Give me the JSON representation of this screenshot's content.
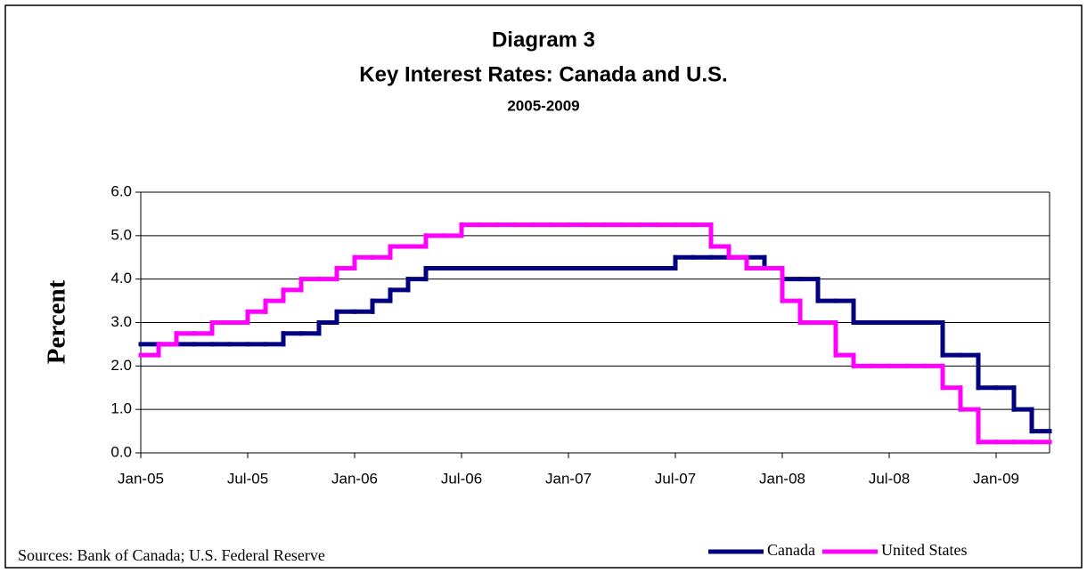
{
  "chart_data": {
    "type": "step-line",
    "title": "Diagram 3",
    "subtitle": "Key Interest Rates: Canada and U.S.",
    "period": "2005-2009",
    "ylabel": "Percent",
    "source": "Sources: Bank of Canada; U.S. Federal Reserve",
    "x": [
      "2005-01",
      "2005-02",
      "2005-03",
      "2005-04",
      "2005-05",
      "2005-06",
      "2005-07",
      "2005-08",
      "2005-09",
      "2005-10",
      "2005-11",
      "2005-12",
      "2006-01",
      "2006-02",
      "2006-03",
      "2006-04",
      "2006-05",
      "2006-06",
      "2006-07",
      "2006-08",
      "2006-09",
      "2006-10",
      "2006-11",
      "2006-12",
      "2007-01",
      "2007-02",
      "2007-03",
      "2007-04",
      "2007-05",
      "2007-06",
      "2007-07",
      "2007-08",
      "2007-09",
      "2007-10",
      "2007-11",
      "2007-12",
      "2008-01",
      "2008-02",
      "2008-03",
      "2008-04",
      "2008-05",
      "2008-06",
      "2008-07",
      "2008-08",
      "2008-09",
      "2008-10",
      "2008-11",
      "2008-12",
      "2009-01",
      "2009-02",
      "2009-03"
    ],
    "series": [
      {
        "name": "Canada",
        "color": "#000080",
        "values": [
          2.5,
          2.5,
          2.5,
          2.5,
          2.5,
          2.5,
          2.5,
          2.5,
          2.75,
          2.75,
          3.0,
          3.25,
          3.25,
          3.5,
          3.75,
          4.0,
          4.25,
          4.25,
          4.25,
          4.25,
          4.25,
          4.25,
          4.25,
          4.25,
          4.25,
          4.25,
          4.25,
          4.25,
          4.25,
          4.25,
          4.5,
          4.5,
          4.5,
          4.5,
          4.5,
          4.25,
          4.0,
          4.0,
          3.5,
          3.5,
          3.0,
          3.0,
          3.0,
          3.0,
          3.0,
          2.25,
          2.25,
          1.5,
          1.5,
          1.0,
          0.5
        ]
      },
      {
        "name": "United States",
        "color": "#ff00ff",
        "values": [
          2.25,
          2.5,
          2.75,
          2.75,
          3.0,
          3.0,
          3.25,
          3.5,
          3.75,
          4.0,
          4.0,
          4.25,
          4.5,
          4.5,
          4.75,
          4.75,
          5.0,
          5.0,
          5.25,
          5.25,
          5.25,
          5.25,
          5.25,
          5.25,
          5.25,
          5.25,
          5.25,
          5.25,
          5.25,
          5.25,
          5.25,
          5.25,
          4.75,
          4.5,
          4.25,
          4.25,
          3.5,
          3.0,
          3.0,
          2.25,
          2.0,
          2.0,
          2.0,
          2.0,
          2.0,
          1.5,
          1.0,
          0.25,
          0.25,
          0.25,
          0.25
        ]
      }
    ],
    "xlim": [
      "2005-01",
      "2009-04"
    ],
    "xticks": [
      {
        "value": "2005-01",
        "label": "Jan-05"
      },
      {
        "value": "2005-07",
        "label": "Jul-05"
      },
      {
        "value": "2006-01",
        "label": "Jan-06"
      },
      {
        "value": "2006-07",
        "label": "Jul-06"
      },
      {
        "value": "2007-01",
        "label": "Jan-07"
      },
      {
        "value": "2007-07",
        "label": "Jul-07"
      },
      {
        "value": "2008-01",
        "label": "Jan-08"
      },
      {
        "value": "2008-07",
        "label": "Jul-08"
      },
      {
        "value": "2009-01",
        "label": "Jan-09"
      }
    ],
    "ylim": [
      0,
      6
    ],
    "yticks": [
      {
        "value": 0,
        "label": "0.0"
      },
      {
        "value": 1,
        "label": "1.0"
      },
      {
        "value": 2,
        "label": "2.0"
      },
      {
        "value": 3,
        "label": "3.0"
      },
      {
        "value": 4,
        "label": "4.0"
      },
      {
        "value": 5,
        "label": "5.0"
      },
      {
        "value": 6,
        "label": "6.0"
      }
    ],
    "grid": true,
    "legend": "bottom-right"
  }
}
